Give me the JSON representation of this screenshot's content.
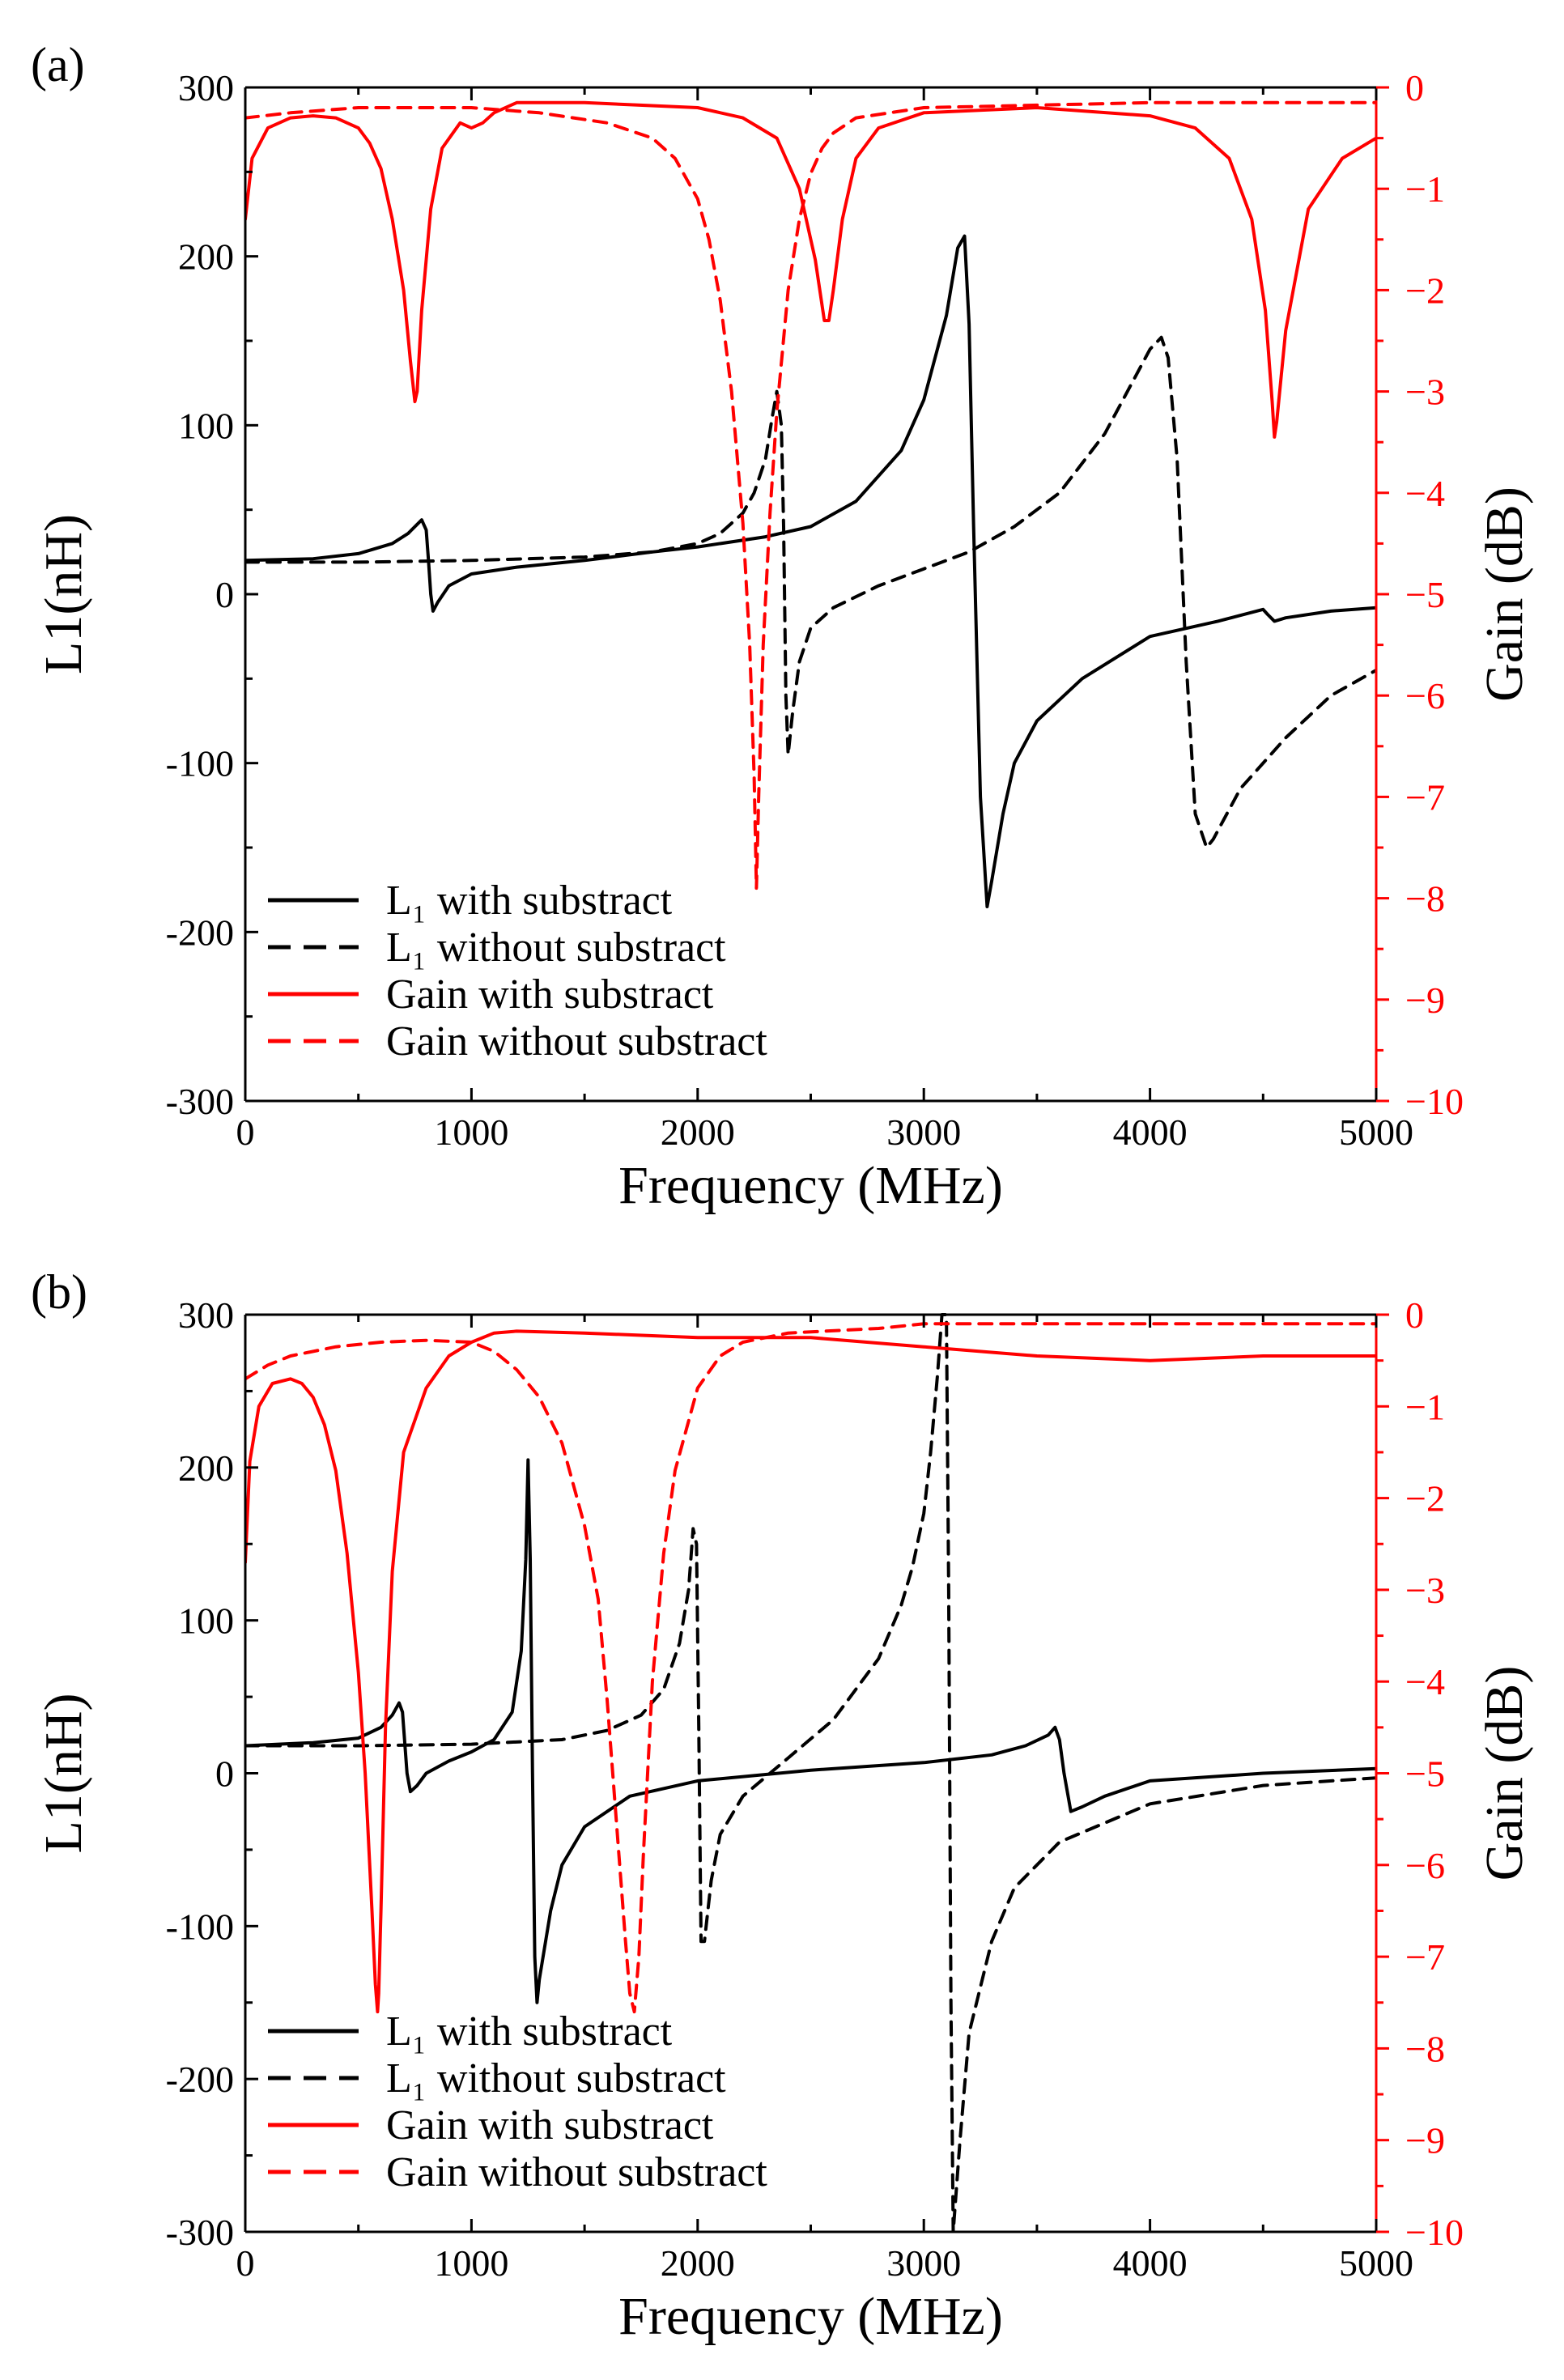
{
  "chart_data": [
    {
      "type": "line",
      "panel_label": "(a)",
      "xlabel": "Frequency (MHz)",
      "ylabel_left": "L1(nH)",
      "ylabel_right": "Gain (dB)",
      "xlim": [
        0,
        5000
      ],
      "ylim_left": [
        -300,
        300
      ],
      "ylim_right": [
        -10,
        0
      ],
      "x_ticks": [
        "0",
        "1000",
        "2000",
        "3000",
        "4000",
        "5000"
      ],
      "left_ticks": [
        "300",
        "200",
        "100",
        "0",
        "-100",
        "-200",
        "-300"
      ],
      "right_ticks": [
        "0",
        "−1",
        "−2",
        "−3",
        "−4",
        "−5",
        "−6",
        "−7",
        "−8",
        "−9",
        "−10"
      ],
      "legend_position": "bottom-left",
      "colors": {
        "l1": "#000000",
        "gain": "#ff0000"
      },
      "series": [
        {
          "name": "L₁ with substract",
          "axis": "left",
          "color": "#000000",
          "dash": false,
          "x": [
            0,
            300,
            500,
            650,
            720,
            780,
            800,
            810,
            820,
            830,
            850,
            900,
            1000,
            1200,
            1500,
            1800,
            2000,
            2300,
            2500,
            2700,
            2900,
            3000,
            3100,
            3150,
            3180,
            3200,
            3220,
            3250,
            3280,
            3300,
            3350,
            3400,
            3500,
            3700,
            4000,
            4300,
            4500,
            4520,
            4550,
            4600,
            4800,
            5000
          ],
          "y": [
            20,
            21,
            24,
            30,
            36,
            44,
            38,
            20,
            0,
            -10,
            -5,
            5,
            12,
            16,
            20,
            25,
            28,
            34,
            40,
            55,
            85,
            115,
            165,
            205,
            212,
            160,
            40,
            -120,
            -185,
            -170,
            -130,
            -100,
            -75,
            -50,
            -25,
            -16,
            -9,
            -12,
            -16,
            -14,
            -10,
            -8
          ]
        },
        {
          "name": "L₁ without substract",
          "axis": "left",
          "color": "#000000",
          "dash": true,
          "x": [
            0,
            500,
            1000,
            1500,
            1800,
            2000,
            2100,
            2200,
            2250,
            2300,
            2330,
            2350,
            2370,
            2380,
            2390,
            2400,
            2420,
            2450,
            2500,
            2600,
            2800,
            3000,
            3200,
            3400,
            3600,
            3800,
            3900,
            4000,
            4050,
            4080,
            4120,
            4160,
            4200,
            4250,
            4280,
            4300,
            4400,
            4600,
            4800,
            5000
          ],
          "y": [
            19,
            19,
            20,
            22,
            25,
            30,
            36,
            48,
            60,
            80,
            105,
            120,
            100,
            40,
            -60,
            -95,
            -70,
            -40,
            -20,
            -8,
            5,
            15,
            25,
            40,
            60,
            95,
            120,
            145,
            152,
            140,
            80,
            -40,
            -130,
            -150,
            -145,
            -140,
            -115,
            -85,
            -60,
            -45
          ]
        },
        {
          "name": "Gain with substract",
          "axis": "right",
          "color": "#ff0000",
          "dash": false,
          "x": [
            0,
            30,
            100,
            200,
            300,
            400,
            500,
            550,
            600,
            650,
            700,
            730,
            750,
            760,
            780,
            820,
            870,
            950,
            1000,
            1050,
            1100,
            1200,
            1500,
            2000,
            2200,
            2350,
            2450,
            2520,
            2560,
            2580,
            2600,
            2640,
            2700,
            2800,
            3000,
            3500,
            4000,
            4200,
            4350,
            4450,
            4510,
            4540,
            4550,
            4560,
            4600,
            4700,
            4850,
            5000
          ],
          "y": [
            -1.3,
            -0.7,
            -0.4,
            -0.3,
            -0.28,
            -0.3,
            -0.4,
            -0.55,
            -0.8,
            -1.3,
            -2.0,
            -2.7,
            -3.1,
            -3.0,
            -2.2,
            -1.2,
            -0.6,
            -0.35,
            -0.4,
            -0.35,
            -0.25,
            -0.15,
            -0.15,
            -0.2,
            -0.3,
            -0.5,
            -1.0,
            -1.7,
            -2.3,
            -2.3,
            -2.0,
            -1.3,
            -0.7,
            -0.4,
            -0.25,
            -0.2,
            -0.28,
            -0.4,
            -0.7,
            -1.3,
            -2.2,
            -3.1,
            -3.45,
            -3.3,
            -2.4,
            -1.2,
            -0.7,
            -0.5
          ]
        },
        {
          "name": "Gain without substract",
          "axis": "right",
          "color": "#ff0000",
          "dash": true,
          "x": [
            0,
            200,
            500,
            1000,
            1300,
            1600,
            1800,
            1900,
            2000,
            2050,
            2100,
            2150,
            2200,
            2230,
            2250,
            2260,
            2270,
            2290,
            2320,
            2350,
            2400,
            2450,
            2500,
            2550,
            2600,
            2700,
            3000,
            4000,
            5000
          ],
          "y": [
            -0.3,
            -0.25,
            -0.2,
            -0.2,
            -0.25,
            -0.35,
            -0.5,
            -0.7,
            -1.1,
            -1.5,
            -2.1,
            -3.0,
            -4.3,
            -5.5,
            -6.8,
            -7.9,
            -7.0,
            -5.5,
            -4.2,
            -3.2,
            -2.0,
            -1.3,
            -0.85,
            -0.6,
            -0.45,
            -0.3,
            -0.2,
            -0.15,
            -0.15
          ]
        }
      ]
    },
    {
      "type": "line",
      "panel_label": "(b)",
      "xlabel": "Frequency (MHz)",
      "ylabel_left": "L1(nH)",
      "ylabel_right": "Gain (dB)",
      "xlim": [
        0,
        5000
      ],
      "ylim_left": [
        -300,
        300
      ],
      "ylim_right": [
        -10,
        0
      ],
      "x_ticks": [
        "0",
        "1000",
        "2000",
        "3000",
        "4000",
        "5000"
      ],
      "left_ticks": [
        "300",
        "200",
        "100",
        "0",
        "-100",
        "-200",
        "-300"
      ],
      "right_ticks": [
        "0",
        "−1",
        "−2",
        "−3",
        "−4",
        "−5",
        "−6",
        "−7",
        "−8",
        "−9",
        "−10"
      ],
      "legend_position": "bottom-left",
      "colors": {
        "l1": "#000000",
        "gain": "#ff0000"
      },
      "series": [
        {
          "name": "L₁ with substract",
          "axis": "left",
          "color": "#000000",
          "dash": false,
          "x": [
            0,
            300,
            500,
            600,
            650,
            680,
            695,
            705,
            715,
            730,
            760,
            800,
            900,
            1000,
            1100,
            1180,
            1220,
            1240,
            1250,
            1260,
            1270,
            1280,
            1290,
            1300,
            1350,
            1400,
            1500,
            1700,
            2000,
            2500,
            3000,
            3300,
            3450,
            3550,
            3580,
            3600,
            3620,
            3650,
            3700,
            3800,
            4000,
            4500,
            5000
          ],
          "y": [
            18,
            20,
            23,
            30,
            38,
            46,
            40,
            20,
            0,
            -12,
            -8,
            0,
            8,
            14,
            22,
            40,
            80,
            140,
            205,
            140,
            0,
            -120,
            -150,
            -135,
            -90,
            -60,
            -35,
            -15,
            -5,
            2,
            7,
            12,
            18,
            25,
            30,
            22,
            0,
            -25,
            -22,
            -15,
            -5,
            0,
            3
          ]
        },
        {
          "name": "L₁ without substract",
          "axis": "left",
          "color": "#000000",
          "dash": true,
          "x": [
            0,
            500,
            1000,
            1400,
            1600,
            1750,
            1850,
            1920,
            1960,
            1980,
            1995,
            2005,
            2015,
            2030,
            2060,
            2100,
            2200,
            2400,
            2600,
            2800,
            2900,
            2950,
            3000,
            3030,
            3060,
            3080,
            3100,
            3110,
            3120,
            3130,
            3140,
            3160,
            3200,
            3300,
            3400,
            3600,
            4000,
            4500,
            5000
          ],
          "y": [
            18,
            18,
            19,
            22,
            28,
            38,
            55,
            85,
            120,
            160,
            150,
            30,
            -110,
            -110,
            -70,
            -40,
            -15,
            10,
            35,
            75,
            110,
            135,
            170,
            210,
            260,
            300,
            300,
            120,
            -150,
            -300,
            -280,
            -240,
            -170,
            -110,
            -75,
            -45,
            -20,
            -8,
            -3
          ]
        },
        {
          "name": "Gain with substract",
          "axis": "right",
          "color": "#ff0000",
          "dash": false,
          "x": [
            0,
            20,
            60,
            120,
            200,
            250,
            300,
            350,
            400,
            450,
            500,
            530,
            560,
            575,
            585,
            590,
            600,
            620,
            650,
            700,
            800,
            900,
            1000,
            1100,
            1200,
            1500,
            2000,
            2500,
            3000,
            3500,
            4000,
            4500,
            5000
          ],
          "y": [
            -2.7,
            -1.6,
            -1.0,
            -0.75,
            -0.7,
            -0.75,
            -0.9,
            -1.2,
            -1.7,
            -2.6,
            -3.9,
            -5.0,
            -6.5,
            -7.3,
            -7.6,
            -7.4,
            -6.5,
            -4.5,
            -2.8,
            -1.5,
            -0.8,
            -0.45,
            -0.3,
            -0.2,
            -0.18,
            -0.2,
            -0.25,
            -0.25,
            -0.35,
            -0.45,
            -0.5,
            -0.45,
            -0.45
          ]
        },
        {
          "name": "Gain without substract",
          "axis": "right",
          "color": "#ff0000",
          "dash": true,
          "x": [
            0,
            100,
            200,
            400,
            600,
            800,
            1000,
            1100,
            1200,
            1300,
            1400,
            1500,
            1560,
            1600,
            1640,
            1680,
            1700,
            1720,
            1740,
            1760,
            1800,
            1850,
            1900,
            2000,
            2100,
            2200,
            2400,
            2800,
            3000,
            4000,
            5000
          ],
          "y": [
            -0.7,
            -0.55,
            -0.45,
            -0.35,
            -0.3,
            -0.28,
            -0.3,
            -0.4,
            -0.6,
            -0.9,
            -1.4,
            -2.3,
            -3.1,
            -4.2,
            -5.5,
            -6.8,
            -7.4,
            -7.6,
            -7.0,
            -5.9,
            -4.0,
            -2.6,
            -1.7,
            -0.8,
            -0.45,
            -0.3,
            -0.2,
            -0.15,
            -0.1,
            -0.1,
            -0.1
          ]
        }
      ]
    }
  ]
}
